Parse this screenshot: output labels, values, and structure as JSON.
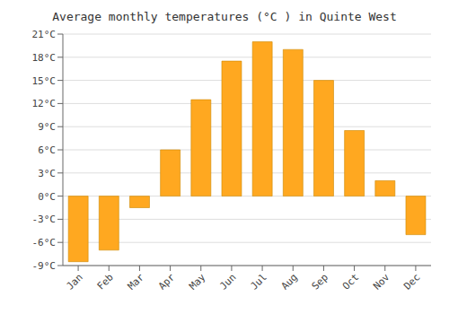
{
  "chart_data": {
    "type": "bar",
    "title": "Average monthly temperatures (°C ) in Quinte West",
    "categories": [
      "Jan",
      "Feb",
      "Mar",
      "Apr",
      "May",
      "Jun",
      "Jul",
      "Aug",
      "Sep",
      "Oct",
      "Nov",
      "Dec"
    ],
    "values": [
      -8.5,
      -7.0,
      -1.5,
      6.0,
      12.5,
      17.5,
      20.0,
      19.0,
      15.0,
      8.5,
      2.0,
      -5.0
    ],
    "color": "#FFA820",
    "ylim": [
      -9,
      21
    ],
    "yticks": [
      {
        "value": -9,
        "label": "-9°C"
      },
      {
        "value": -6,
        "label": "-6°C"
      },
      {
        "value": -3,
        "label": "-3°C"
      },
      {
        "value": 0,
        "label": "0°C"
      },
      {
        "value": 3,
        "label": "3°C"
      },
      {
        "value": 6,
        "label": "6°C"
      },
      {
        "value": 9,
        "label": "9°C"
      },
      {
        "value": 12,
        "label": "12°C"
      },
      {
        "value": 15,
        "label": "15°C"
      },
      {
        "value": 18,
        "label": "18°C"
      },
      {
        "value": 21,
        "label": "21°C"
      }
    ],
    "grid": true
  }
}
